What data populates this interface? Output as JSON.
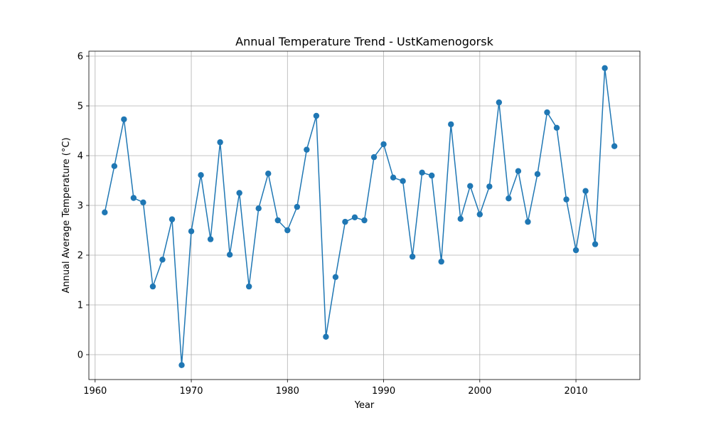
{
  "chart_data": {
    "type": "line",
    "title": "Annual Temperature Trend - UstKamenogorsk",
    "xlabel": "Year",
    "ylabel": "Annual Average Temperature (°C)",
    "xlim": [
      1959.35,
      2016.65
    ],
    "ylim": [
      -0.5,
      6.1
    ],
    "xticks": [
      1960,
      1970,
      1980,
      1990,
      2000,
      2010
    ],
    "yticks": [
      0,
      1,
      2,
      3,
      4,
      5,
      6
    ],
    "grid": true,
    "marker": "circle",
    "colors": {
      "series": "#1f77b4"
    },
    "x": [
      1961,
      1962,
      1963,
      1964,
      1965,
      1966,
      1967,
      1968,
      1969,
      1970,
      1971,
      1972,
      1973,
      1974,
      1975,
      1976,
      1977,
      1978,
      1979,
      1980,
      1981,
      1982,
      1983,
      1984,
      1985,
      1986,
      1987,
      1988,
      1989,
      1990,
      1991,
      1992,
      1993,
      1994,
      1995,
      1996,
      1997,
      1998,
      1999,
      2000,
      2001,
      2002,
      2003,
      2004,
      2005,
      2006,
      2007,
      2008,
      2009,
      2010,
      2011,
      2012,
      2013,
      2014
    ],
    "series": [
      {
        "values": [
          2.86,
          3.79,
          4.73,
          3.15,
          3.06,
          1.37,
          1.91,
          2.72,
          -0.21,
          2.48,
          3.61,
          2.32,
          4.27,
          2.01,
          3.25,
          1.37,
          2.94,
          3.64,
          2.7,
          2.5,
          2.97,
          4.12,
          4.8,
          0.36,
          1.56,
          2.67,
          2.76,
          2.7,
          3.97,
          4.23,
          3.56,
          3.49,
          1.97,
          3.66,
          3.6,
          1.87,
          4.63,
          2.73,
          3.39,
          2.82,
          3.38,
          5.07,
          3.14,
          3.69,
          2.67,
          3.63,
          4.87,
          4.56,
          3.12,
          2.1,
          3.29,
          2.22,
          5.76,
          4.19
        ]
      }
    ]
  }
}
